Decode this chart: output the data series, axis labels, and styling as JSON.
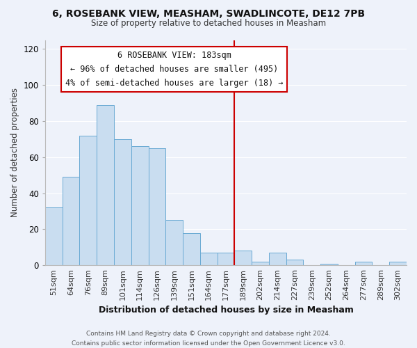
{
  "title1": "6, ROSEBANK VIEW, MEASHAM, SWADLINCOTE, DE12 7PB",
  "title2": "Size of property relative to detached houses in Measham",
  "xlabel": "Distribution of detached houses by size in Measham",
  "ylabel": "Number of detached properties",
  "bar_labels": [
    "51sqm",
    "64sqm",
    "76sqm",
    "89sqm",
    "101sqm",
    "114sqm",
    "126sqm",
    "139sqm",
    "151sqm",
    "164sqm",
    "177sqm",
    "189sqm",
    "202sqm",
    "214sqm",
    "227sqm",
    "239sqm",
    "252sqm",
    "264sqm",
    "277sqm",
    "289sqm",
    "302sqm"
  ],
  "bar_heights": [
    32,
    49,
    72,
    89,
    70,
    66,
    65,
    25,
    18,
    7,
    7,
    8,
    2,
    7,
    3,
    0,
    1,
    0,
    2,
    0,
    2
  ],
  "bar_color": "#c9ddf0",
  "bar_edge_color": "#6aaad4",
  "vline_color": "#cc0000",
  "annotation_title": "6 ROSEBANK VIEW: 183sqm",
  "annotation_line1": "← 96% of detached houses are smaller (495)",
  "annotation_line2": "4% of semi-detached houses are larger (18) →",
  "annotation_box_color": "#ffffff",
  "annotation_box_edge": "#cc0000",
  "ylim": [
    0,
    125
  ],
  "bg_color": "#eef2fa",
  "grid_color": "#ffffff",
  "footnote1": "Contains HM Land Registry data © Crown copyright and database right 2024.",
  "footnote2": "Contains public sector information licensed under the Open Government Licence v3.0."
}
